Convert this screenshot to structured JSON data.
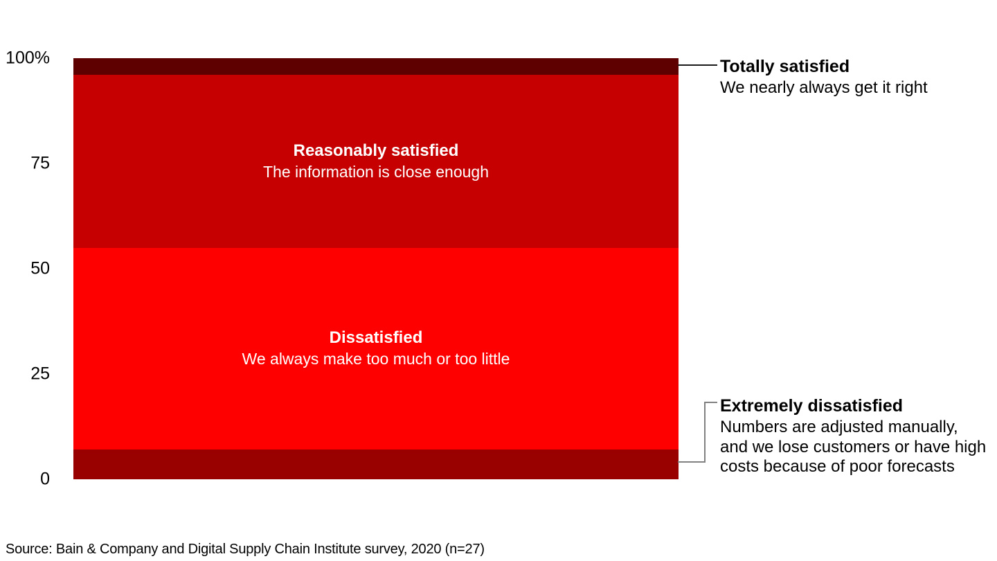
{
  "chart_data": {
    "type": "bar",
    "subtype": "stacked_single_column_100pct",
    "title": "",
    "xlabel": "",
    "ylabel": "",
    "legend": "none",
    "grid": false,
    "yaxis": {
      "range": [
        0,
        100
      ],
      "ticks": [
        {
          "label": "100%",
          "value": 100
        },
        {
          "label": "75",
          "value": 75
        },
        {
          "label": "50",
          "value": 50
        },
        {
          "label": "25",
          "value": 25
        },
        {
          "label": "0",
          "value": 0
        }
      ]
    },
    "series": [
      {
        "name": "Totally satisfied",
        "description": "We nearly always get it right",
        "value_pct": 4,
        "color": "#5e0000",
        "label_position": "callout-right"
      },
      {
        "name": "Reasonably satisfied",
        "description": "The information is close enough",
        "value_pct": 41,
        "color": "#c60000",
        "label_position": "inside"
      },
      {
        "name": "Dissatisfied",
        "description": "We always make too much or too little",
        "value_pct": 48,
        "color": "#ff0000",
        "label_position": "inside"
      },
      {
        "name": "Extremely dissatisfied",
        "description": "Numbers are adjusted manually, and we lose customers or have high costs because of poor forecasts",
        "value_pct": 7,
        "color": "#990000",
        "label_position": "callout-right"
      }
    ],
    "source": "Source: Bain & Company and Digital Supply Chain Institute survey, 2020 (n=27)"
  },
  "annotations": {
    "top": {
      "title": "Totally satisfied",
      "body": "We nearly always get it right"
    },
    "bottom": {
      "title": "Extremely dissatisfied",
      "body_lines": [
        "Numbers are adjusted manually,",
        "and we lose customers or have high",
        "costs because of poor forecasts"
      ]
    }
  },
  "colors": {
    "top_connector": "#1a1a1a",
    "elbow_connector": "#808080",
    "inside_label_text": "#ffffff",
    "axis_text": "#000000"
  }
}
